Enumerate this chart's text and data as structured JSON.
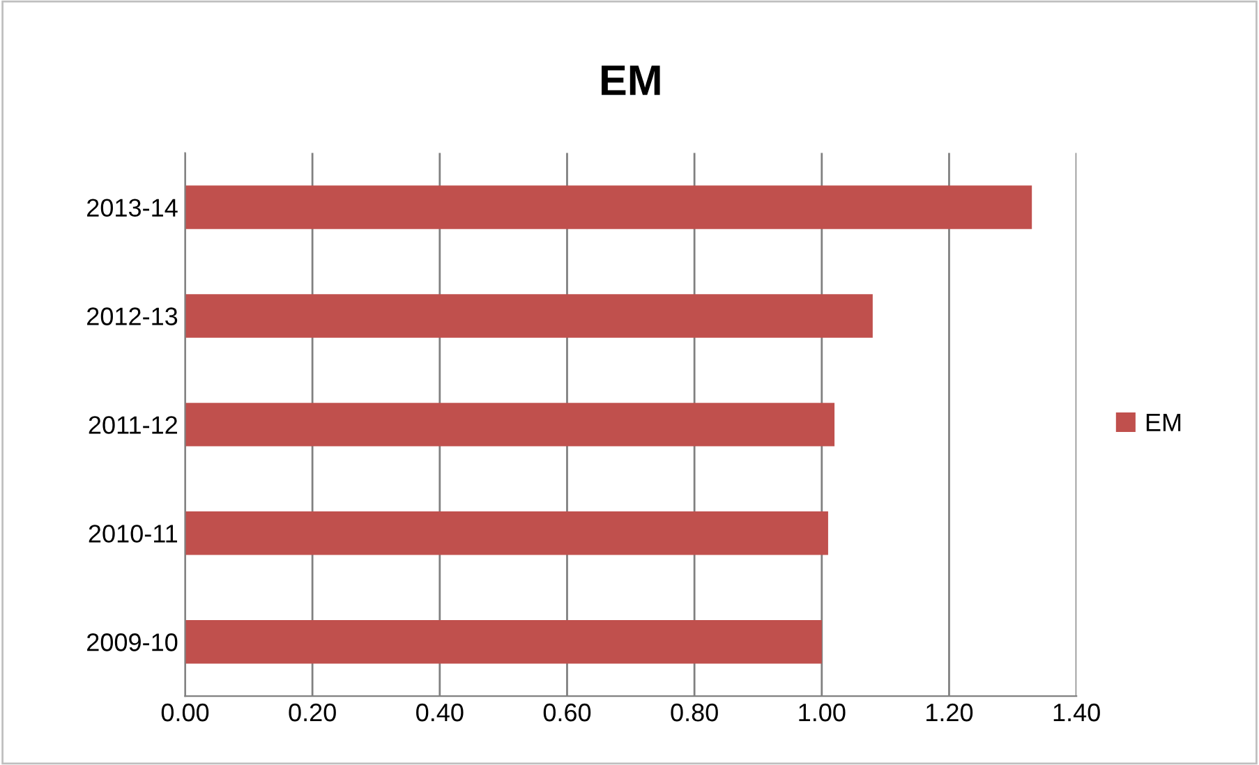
{
  "chart_data": {
    "type": "bar",
    "title": "EM",
    "orientation": "horizontal",
    "categories": [
      "2013-14",
      "2012-13",
      "2011-12",
      "2010-11",
      "2009-10"
    ],
    "series": [
      {
        "name": "EM",
        "color": "#c0504d",
        "values": [
          1.33,
          1.08,
          1.02,
          1.01,
          1.0
        ]
      }
    ],
    "xlim": [
      0,
      1.4
    ],
    "xticks": [
      {
        "value": 0,
        "label": "0.00"
      },
      {
        "value": 0.2,
        "label": "0.20"
      },
      {
        "value": 0.4,
        "label": "0.40"
      },
      {
        "value": 0.6,
        "label": "0.60"
      },
      {
        "value": 0.8,
        "label": "0.80"
      },
      {
        "value": 1.0,
        "label": "1.00"
      },
      {
        "value": 1.2,
        "label": "1.20"
      },
      {
        "value": 1.4,
        "label": "1.40"
      }
    ],
    "grid": "x",
    "legend": "right"
  }
}
